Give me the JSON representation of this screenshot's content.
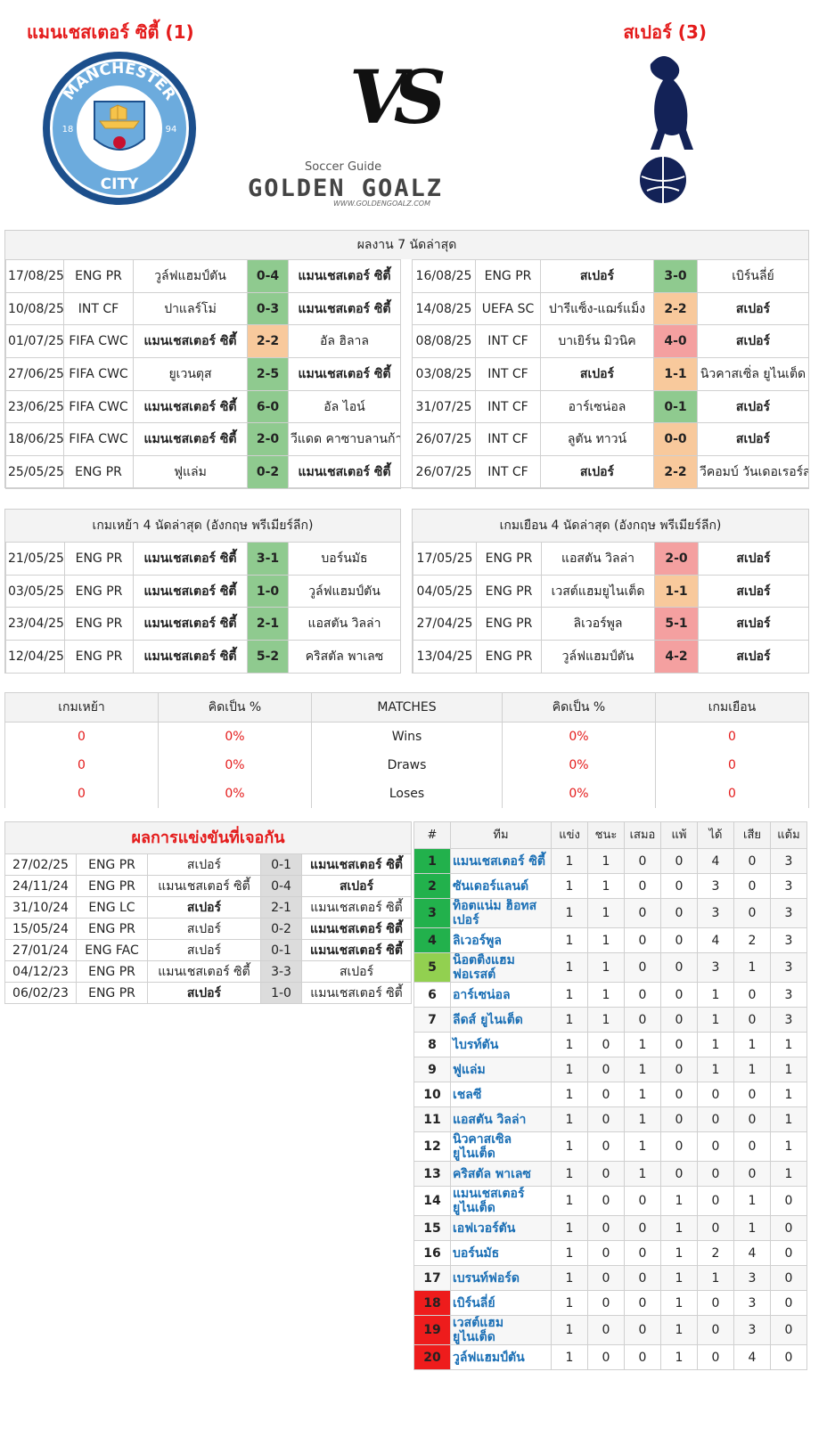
{
  "header": {
    "home_title": "แมนเชสเตอร์ ซิตี้ (1)",
    "away_title": "สเปอร์ (3)",
    "vs": "VS",
    "home_badge": {
      "top": "MANCHESTER",
      "bottom": "CITY",
      "left": "18",
      "right": "94"
    },
    "logo": {
      "tagline": "Soccer Guide",
      "name": "GOLDEN GOALZ",
      "url": "WWW.GOLDENGOALZ.COM"
    }
  },
  "recent": {
    "title": "ผลงาน 7 นัดล่าสุด",
    "home": {
      "rows": [
        {
          "cells": [
            "17/08/25",
            "ENG PR",
            "วูล์ฟแฮมป์ตัน",
            "0-4",
            "แมนเชสเตอร์ ซิตี้"
          ],
          "color": "#8fca8f"
        },
        {
          "cells": [
            "10/08/25",
            "INT CF",
            "ปาแลร์โม่",
            "0-3",
            "แมนเชสเตอร์ ซิตี้"
          ],
          "color": "#8fca8f"
        },
        {
          "cells": [
            "01/07/25",
            "FIFA CWC",
            "แมนเชสเตอร์ ซิตี้",
            "2-2",
            "อัล ฮิลาล"
          ],
          "color": "#f8c99c"
        },
        {
          "cells": [
            "27/06/25",
            "FIFA CWC",
            "ยูเวนตุส",
            "2-5",
            "แมนเชสเตอร์ ซิตี้"
          ],
          "color": "#8fca8f"
        },
        {
          "cells": [
            "23/06/25",
            "FIFA CWC",
            "แมนเชสเตอร์ ซิตี้",
            "6-0",
            "อัล ไอน์"
          ],
          "color": "#8fca8f"
        },
        {
          "cells": [
            "18/06/25",
            "FIFA CWC",
            "แมนเชสเตอร์ ซิตี้",
            "2-0",
            "วีแดด คาซาบลานก้า"
          ],
          "color": "#8fca8f"
        },
        {
          "cells": [
            "25/05/25",
            "ENG PR",
            "ฟูแล่ม",
            "0-2",
            "แมนเชสเตอร์ ซิตี้"
          ],
          "color": "#8fca8f"
        }
      ]
    },
    "away": {
      "rows": [
        {
          "cells": [
            "16/08/25",
            "ENG PR",
            "สเปอร์",
            "3-0",
            "เบิร์นลี่ย์"
          ],
          "color": "#8fca8f"
        },
        {
          "cells": [
            "14/08/25",
            "UEFA SC",
            "ปารีแซ็ง-แฌร์แม็ง",
            "2-2",
            "สเปอร์"
          ],
          "color": "#f8c99c"
        },
        {
          "cells": [
            "08/08/25",
            "INT CF",
            "บาเยิร์น มิวนิค",
            "4-0",
            "สเปอร์"
          ],
          "color": "#f4a0a0"
        },
        {
          "cells": [
            "03/08/25",
            "INT CF",
            "สเปอร์",
            "1-1",
            "นิวคาสเซิ่ล ยูไนเต็ด"
          ],
          "color": "#f8c99c"
        },
        {
          "cells": [
            "31/07/25",
            "INT CF",
            "อาร์เซน่อล",
            "0-1",
            "สเปอร์"
          ],
          "color": "#8fca8f"
        },
        {
          "cells": [
            "26/07/25",
            "INT CF",
            "ลูตัน ทาวน์",
            "0-0",
            "สเปอร์"
          ],
          "color": "#f8c99c"
        },
        {
          "cells": [
            "26/07/25",
            "INT CF",
            "สเปอร์",
            "2-2",
            "วีคอมบ์ วันเดอเรอร์ส"
          ],
          "color": "#f8c99c"
        }
      ]
    }
  },
  "last4": {
    "home": {
      "title": "เกมเหย้า 4 นัดล่าสุด (อังกฤษ พรีเมียร์ลีก)",
      "rows": [
        {
          "cells": [
            "21/05/25",
            "ENG PR",
            "แมนเชสเตอร์ ซิตี้",
            "3-1",
            "บอร์นมัธ"
          ],
          "color": "#8fca8f"
        },
        {
          "cells": [
            "03/05/25",
            "ENG PR",
            "แมนเชสเตอร์ ซิตี้",
            "1-0",
            "วูล์ฟแฮมป์ตัน"
          ],
          "color": "#8fca8f"
        },
        {
          "cells": [
            "23/04/25",
            "ENG PR",
            "แมนเชสเตอร์ ซิตี้",
            "2-1",
            "แอสตัน วิลล่า"
          ],
          "color": "#8fca8f"
        },
        {
          "cells": [
            "12/04/25",
            "ENG PR",
            "แมนเชสเตอร์ ซิตี้",
            "5-2",
            "คริสตัล พาเลซ"
          ],
          "color": "#8fca8f"
        }
      ]
    },
    "away": {
      "title": "เกมเยือน 4 นัดล่าสุด (อังกฤษ พรีเมียร์ลีก)",
      "rows": [
        {
          "cells": [
            "17/05/25",
            "ENG PR",
            "แอสตัน วิลล่า",
            "2-0",
            "สเปอร์"
          ],
          "color": "#f4a0a0"
        },
        {
          "cells": [
            "04/05/25",
            "ENG PR",
            "เวสต์แฮมยูไนเต็ด",
            "1-1",
            "สเปอร์"
          ],
          "color": "#f8c99c"
        },
        {
          "cells": [
            "27/04/25",
            "ENG PR",
            "ลิเวอร์พูล",
            "5-1",
            "สเปอร์"
          ],
          "color": "#f4a0a0"
        },
        {
          "cells": [
            "13/04/25",
            "ENG PR",
            "วูล์ฟแฮมป์ตัน",
            "4-2",
            "สเปอร์"
          ],
          "color": "#f4a0a0"
        }
      ]
    }
  },
  "summary": {
    "headers": [
      "เกมเหย้า",
      "คิดเป็น %",
      "MATCHES",
      "คิดเป็น %",
      "เกมเยือน"
    ],
    "rows": [
      [
        "0",
        "0%",
        "Wins",
        "0%",
        "0"
      ],
      [
        "0",
        "0%",
        "Draws",
        "0%",
        "0"
      ],
      [
        "0",
        "0%",
        "Loses",
        "0%",
        "0"
      ]
    ]
  },
  "h2h": {
    "title": "ผลการแข่งขันที่เจอกัน",
    "rows": [
      [
        "27/02/25",
        "ENG PR",
        "สเปอร์",
        "0-1",
        "แมนเชสเตอร์ ซิตี้"
      ],
      [
        "24/11/24",
        "ENG PR",
        "แมนเชสเตอร์ ซิตี้",
        "0-4",
        "สเปอร์"
      ],
      [
        "31/10/24",
        "ENG LC",
        "สเปอร์",
        "2-1",
        "แมนเชสเตอร์ ซิตี้"
      ],
      [
        "15/05/24",
        "ENG PR",
        "สเปอร์",
        "0-2",
        "แมนเชสเตอร์ ซิตี้"
      ],
      [
        "27/01/24",
        "ENG FAC",
        "สเปอร์",
        "0-1",
        "แมนเชสเตอร์ ซิตี้"
      ],
      [
        "04/12/23",
        "ENG PR",
        "แมนเชสเตอร์ ซิตี้",
        "3-3",
        "สเปอร์"
      ],
      [
        "06/02/23",
        "ENG PR",
        "สเปอร์",
        "1-0",
        "แมนเชสเตอร์ ซิตี้"
      ]
    ]
  },
  "league": {
    "headers": [
      "#",
      "ทีม",
      "แข่ง",
      "ชนะ",
      "เสมอ",
      "แพ้",
      "ได้",
      "เสีย",
      "แต้ม"
    ],
    "rows": [
      {
        "cells": [
          1,
          "แมนเชสเตอร์ ซิตี้",
          1,
          1,
          0,
          0,
          4,
          0,
          3
        ],
        "color": "#22b14c"
      },
      {
        "cells": [
          2,
          "ซันเดอร์แลนด์",
          1,
          1,
          0,
          0,
          3,
          0,
          3
        ],
        "color": "#22b14c"
      },
      {
        "cells": [
          3,
          "ท็อตแน่ม ฮ็อทสเปอร์",
          1,
          1,
          0,
          0,
          3,
          0,
          3
        ],
        "color": "#22b14c"
      },
      {
        "cells": [
          4,
          "ลิเวอร์พูล",
          1,
          1,
          0,
          0,
          4,
          2,
          3
        ],
        "color": "#22b14c"
      },
      {
        "cells": [
          5,
          "น็อตติ้งแฮม ฟอเรสต์",
          1,
          1,
          0,
          0,
          3,
          1,
          3
        ],
        "color": "#92d050"
      },
      {
        "cells": [
          6,
          "อาร์เซน่อล",
          1,
          1,
          0,
          0,
          1,
          0,
          3
        ]
      },
      {
        "cells": [
          7,
          "ลีดส์ ยูไนเต็ด",
          1,
          1,
          0,
          0,
          1,
          0,
          3
        ]
      },
      {
        "cells": [
          8,
          "ไบรท์ตัน",
          1,
          0,
          1,
          0,
          1,
          1,
          1
        ]
      },
      {
        "cells": [
          9,
          "ฟูแล่ม",
          1,
          0,
          1,
          0,
          1,
          1,
          1
        ]
      },
      {
        "cells": [
          10,
          "เชลซี",
          1,
          0,
          1,
          0,
          0,
          0,
          1
        ]
      },
      {
        "cells": [
          11,
          "แอสตัน วิลล่า",
          1,
          0,
          1,
          0,
          0,
          0,
          1
        ]
      },
      {
        "cells": [
          12,
          "นิวคาสเซิ่ล ยูไนเต็ด",
          1,
          0,
          1,
          0,
          0,
          0,
          1
        ]
      },
      {
        "cells": [
          13,
          "คริสตัล พาเลซ",
          1,
          0,
          1,
          0,
          0,
          0,
          1
        ]
      },
      {
        "cells": [
          14,
          "แมนเชสเตอร์ ยูไนเต็ด",
          1,
          0,
          0,
          1,
          0,
          1,
          0
        ]
      },
      {
        "cells": [
          15,
          "เอฟเวอร์ตัน",
          1,
          0,
          0,
          1,
          0,
          1,
          0
        ]
      },
      {
        "cells": [
          16,
          "บอร์นมัธ",
          1,
          0,
          0,
          1,
          2,
          4,
          0
        ]
      },
      {
        "cells": [
          17,
          "เบรนท์ฟอร์ด",
          1,
          0,
          0,
          1,
          1,
          3,
          0
        ]
      },
      {
        "cells": [
          18,
          "เบิร์นลี่ย์",
          1,
          0,
          0,
          1,
          0,
          3,
          0
        ],
        "color": "#ee1c1c"
      },
      {
        "cells": [
          19,
          "เวสต์แฮม ยูไนเต็ด",
          1,
          0,
          0,
          1,
          0,
          3,
          0
        ],
        "color": "#ee1c1c"
      },
      {
        "cells": [
          20,
          "วูล์ฟแฮมป์ตัน",
          1,
          0,
          0,
          1,
          0,
          4,
          0
        ],
        "color": "#ee1c1c"
      }
    ]
  }
}
